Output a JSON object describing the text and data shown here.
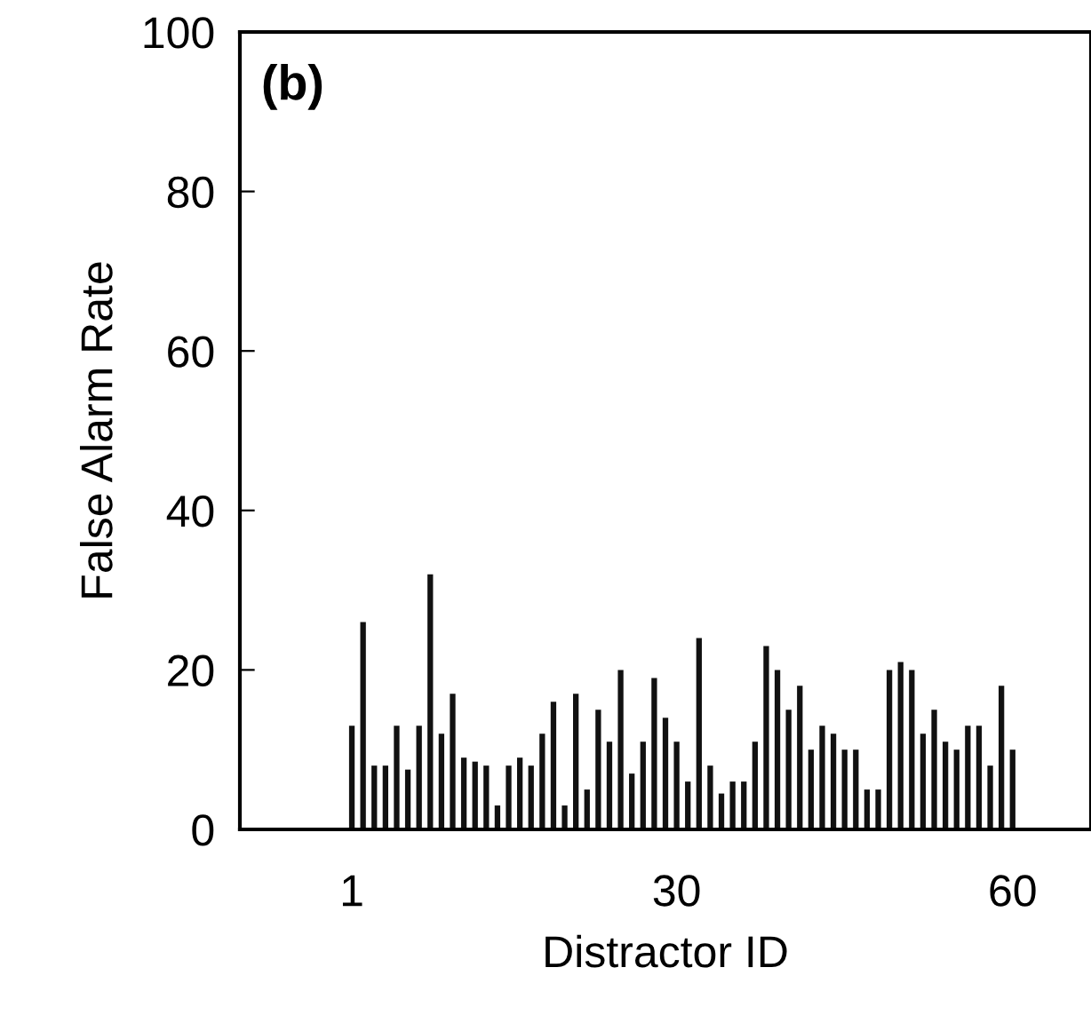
{
  "chart_data": {
    "type": "bar",
    "xlabel": "Distractor ID",
    "ylabel": "False Alarm Rate",
    "annotations": [
      "(b)"
    ],
    "categories": [
      "1",
      null,
      null,
      null,
      null,
      null,
      null,
      null,
      null,
      null,
      null,
      null,
      null,
      null,
      null,
      null,
      null,
      null,
      null,
      null,
      null,
      null,
      null,
      null,
      null,
      null,
      null,
      null,
      null,
      "30",
      null,
      null,
      null,
      null,
      null,
      null,
      null,
      null,
      null,
      null,
      null,
      null,
      null,
      null,
      null,
      null,
      null,
      null,
      null,
      null,
      null,
      null,
      null,
      null,
      null,
      null,
      null,
      null,
      null,
      "60"
    ],
    "values": [
      13,
      26,
      8,
      8,
      13,
      7.5,
      13,
      32,
      12,
      17,
      9,
      8.5,
      8,
      3,
      8,
      9,
      8,
      12,
      16,
      3,
      17,
      5,
      15,
      11,
      20,
      7,
      11,
      19,
      14,
      11,
      6,
      24,
      8,
      4.5,
      6,
      6,
      11,
      23,
      20,
      15,
      18,
      10,
      13,
      12,
      10,
      10,
      5,
      5,
      20,
      21,
      20,
      12,
      15,
      11,
      10,
      13,
      13,
      8,
      18,
      10
    ],
    "color": "#111111",
    "ylim": [
      0,
      100
    ],
    "yticks": [
      0,
      20,
      40,
      60,
      80,
      100
    ],
    "grid": false,
    "legend": false
  }
}
